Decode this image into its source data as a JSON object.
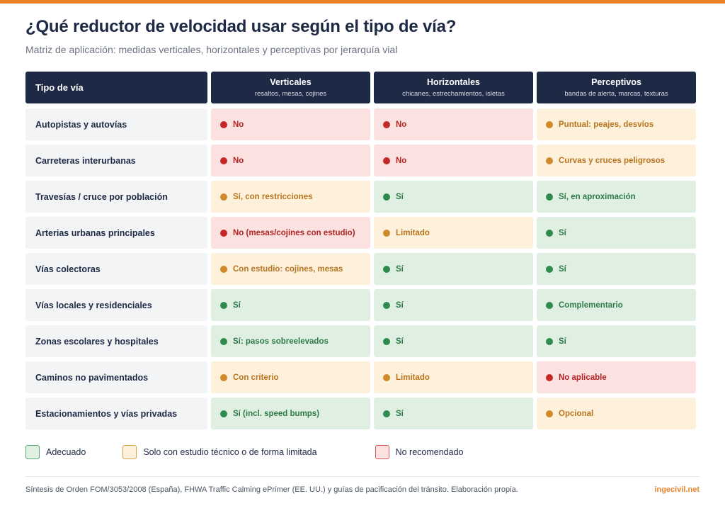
{
  "colors": {
    "accent": "#e8832a",
    "header_bg": "#1e2a45",
    "ok_bg": "#dff0e3",
    "ok_dot": "#2f8a4e",
    "ok_text": "#2f7a48",
    "ok_border": "#5aa874",
    "limited_bg": "#fdf1dc",
    "limited_dot": "#d0892a",
    "limited_text": "#b9741e",
    "limited_border": "#d9a24e",
    "no_bg": "#fbe1e0",
    "no_dot": "#c62828",
    "no_text": "#b32525",
    "no_border": "#d35a58"
  },
  "header": {
    "title": "¿Qué reductor de velocidad usar según el tipo de vía?",
    "subtitle": "Matriz de aplicación: medidas verticales, horizontales y perceptivas por jerarquía vial"
  },
  "table": {
    "first_column_label": "Tipo de vía",
    "columns": [
      {
        "title": "Verticales",
        "subtitle": "resaltos, mesas, cojines"
      },
      {
        "title": "Horizontales",
        "subtitle": "chicanes, estrechamientos, isletas"
      },
      {
        "title": "Perceptivos",
        "subtitle": "bandas de alerta, marcas, texturas"
      }
    ],
    "rows": [
      {
        "road": "Autopistas y autovías",
        "cells": [
          {
            "status": "no",
            "text": "No"
          },
          {
            "status": "no",
            "text": "No"
          },
          {
            "status": "limited",
            "text": "Puntual: peajes, desvíos"
          }
        ]
      },
      {
        "road": "Carreteras interurbanas",
        "cells": [
          {
            "status": "no",
            "text": "No"
          },
          {
            "status": "no",
            "text": "No"
          },
          {
            "status": "limited",
            "text": "Curvas y cruces peligrosos"
          }
        ]
      },
      {
        "road": "Travesías / cruce por población",
        "cells": [
          {
            "status": "limited",
            "text": "Sí, con restricciones"
          },
          {
            "status": "ok",
            "text": "Sí"
          },
          {
            "status": "ok",
            "text": "Sí, en aproximación"
          }
        ]
      },
      {
        "road": "Arterias urbanas principales",
        "cells": [
          {
            "status": "no",
            "text": "No (mesas/cojines con estudio)"
          },
          {
            "status": "limited",
            "text": "Limitado"
          },
          {
            "status": "ok",
            "text": "Sí"
          }
        ]
      },
      {
        "road": "Vías colectoras",
        "cells": [
          {
            "status": "limited",
            "text": "Con estudio: cojines, mesas"
          },
          {
            "status": "ok",
            "text": "Sí"
          },
          {
            "status": "ok",
            "text": "Sí"
          }
        ]
      },
      {
        "road": "Vías locales y residenciales",
        "cells": [
          {
            "status": "ok",
            "text": "Sí"
          },
          {
            "status": "ok",
            "text": "Sí"
          },
          {
            "status": "ok",
            "text": "Complementario"
          }
        ]
      },
      {
        "road": "Zonas escolares y hospitales",
        "cells": [
          {
            "status": "ok",
            "text": "Sí: pasos sobreelevados"
          },
          {
            "status": "ok",
            "text": "Sí"
          },
          {
            "status": "ok",
            "text": "Sí"
          }
        ]
      },
      {
        "road": "Caminos no pavimentados",
        "cells": [
          {
            "status": "limited",
            "text": "Con criterio"
          },
          {
            "status": "limited",
            "text": "Limitado"
          },
          {
            "status": "no",
            "text": "No aplicable"
          }
        ]
      },
      {
        "road": "Estacionamientos y vías privadas",
        "cells": [
          {
            "status": "ok",
            "text": "Sí (incl. speed bumps)"
          },
          {
            "status": "ok",
            "text": "Sí"
          },
          {
            "status": "limited",
            "text": "Opcional"
          }
        ]
      }
    ]
  },
  "legend": [
    {
      "status": "ok",
      "label": "Adecuado"
    },
    {
      "status": "limited",
      "label": "Solo con estudio técnico o de forma limitada"
    },
    {
      "status": "no",
      "label": "No recomendado"
    }
  ],
  "footer": {
    "source": "Síntesis de Orden FOM/3053/2008 (España), FHWA Traffic Calming ePrimer (EE. UU.) y guías de pacificación del tránsito. Elaboración propia.",
    "brand": "ingecivil.net"
  }
}
